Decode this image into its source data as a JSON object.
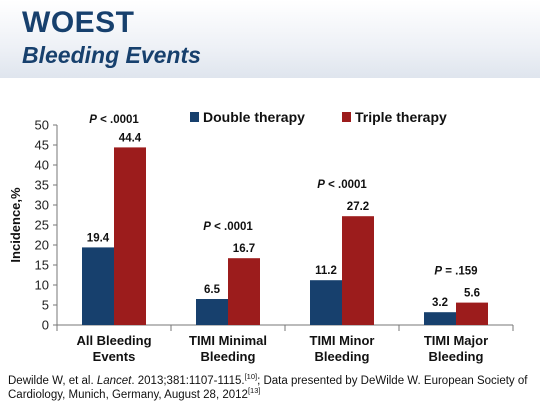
{
  "header": {
    "title": "WOEST",
    "subtitle": "Bleeding Events"
  },
  "colors": {
    "title": "#17406d",
    "double": "#17406d",
    "triple": "#9c1c1c"
  },
  "chart_data": {
    "type": "bar",
    "title": "",
    "xlabel": "",
    "ylabel": "Incidence,%",
    "ylim": [
      0,
      50
    ],
    "yticks": [
      0,
      5,
      10,
      15,
      20,
      25,
      30,
      35,
      40,
      45,
      50
    ],
    "grid": false,
    "legend": "top",
    "categories": [
      [
        "All Bleeding",
        "Events"
      ],
      [
        "TIMI Minimal",
        "Bleeding"
      ],
      [
        "TIMI Minor",
        "Bleeding"
      ],
      [
        "TIMI Major",
        "Bleeding"
      ]
    ],
    "series": [
      {
        "name": "Double therapy",
        "values": [
          19.4,
          6.5,
          11.2,
          3.2
        ],
        "labels": [
          "19.4",
          "6.5",
          "11.2",
          "3.2"
        ]
      },
      {
        "name": "Triple therapy",
        "values": [
          44.4,
          16.7,
          27.2,
          5.6
        ],
        "labels": [
          "44.4",
          "16.7",
          "27.2",
          "5.6"
        ]
      }
    ],
    "annotations": [
      {
        "prefix": "P",
        "text": " < .0001"
      },
      {
        "prefix": "P",
        "text": " < .0001"
      },
      {
        "prefix": "P",
        "text": " < .0001"
      },
      {
        "prefix": "P",
        "text": " = .159"
      }
    ]
  },
  "footer": {
    "author": "Dewilde W, et al. ",
    "journal": "Lancet",
    "citation": ". 2013;381:1107-1115.",
    "ref1": "[10]",
    "presented": "; Data presented by DeWilde W. European Society of Cardiology, Munich, Germany, August 28,  2012",
    "ref2": "[13]"
  }
}
